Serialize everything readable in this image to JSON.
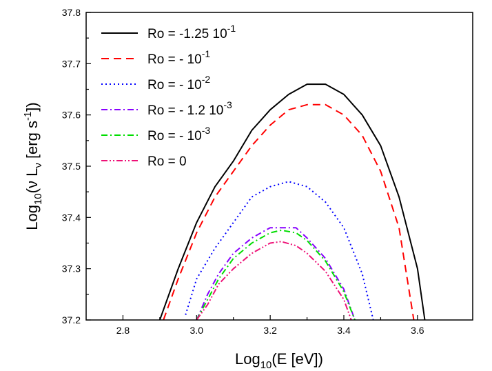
{
  "chart_data": {
    "type": "line",
    "xlabel": {
      "base": "Log",
      "sub": "10",
      "rest": "(E [eV])"
    },
    "ylabel": {
      "base": "Log",
      "sub": "10",
      "mid": "(ν L",
      "sub2": "ν",
      "mid2": " [erg s",
      "sup": "-1",
      "end": "])"
    },
    "xlim": [
      2.7,
      3.75
    ],
    "ylim": [
      37.2,
      37.8
    ],
    "xticks": [
      2.8,
      3.0,
      3.2,
      3.4,
      3.6
    ],
    "xtick_labels": [
      "2.8",
      "3.0",
      "3.2",
      "3.4",
      "3.6"
    ],
    "yticks": [
      37.2,
      37.3,
      37.4,
      37.5,
      37.6,
      37.7,
      37.8
    ],
    "ytick_labels": [
      "37.2",
      "37.3",
      "37.4",
      "37.5",
      "37.6",
      "37.7",
      "37.8"
    ],
    "legend_position": "top-left",
    "series": [
      {
        "name": "Ro = -1.25 10",
        "name_sup": "-1",
        "color": "#000000",
        "dash": "solid",
        "x": [
          2.9,
          2.95,
          3.0,
          3.05,
          3.1,
          3.15,
          3.2,
          3.25,
          3.3,
          3.35,
          3.4,
          3.45,
          3.5,
          3.55,
          3.6,
          3.62
        ],
        "y": [
          37.2,
          37.3,
          37.39,
          37.46,
          37.51,
          37.57,
          37.61,
          37.64,
          37.66,
          37.66,
          37.64,
          37.6,
          37.54,
          37.44,
          37.3,
          37.2
        ]
      },
      {
        "name": "Ro = - 10",
        "name_sup": "-1",
        "color": "#ff0000",
        "dash": "dashed",
        "x": [
          2.91,
          2.95,
          3.0,
          3.05,
          3.1,
          3.15,
          3.2,
          3.25,
          3.3,
          3.35,
          3.4,
          3.45,
          3.5,
          3.55,
          3.59
        ],
        "y": [
          37.2,
          37.28,
          37.37,
          37.44,
          37.49,
          37.54,
          37.58,
          37.61,
          37.62,
          37.62,
          37.6,
          37.56,
          37.49,
          37.38,
          37.2
        ]
      },
      {
        "name": "Ro = - 10",
        "name_sup": "-2",
        "color": "#0000ff",
        "dash": "dotted",
        "x": [
          2.97,
          3.0,
          3.05,
          3.1,
          3.15,
          3.2,
          3.25,
          3.3,
          3.35,
          3.4,
          3.45,
          3.48
        ],
        "y": [
          37.21,
          37.28,
          37.34,
          37.39,
          37.44,
          37.46,
          37.47,
          37.46,
          37.43,
          37.38,
          37.29,
          37.2
        ]
      },
      {
        "name": "Ro = - 1.2 10",
        "name_sup": "-3",
        "color": "#8800ff",
        "dash": "dashdot",
        "x": [
          3.0,
          3.03,
          3.06,
          3.1,
          3.15,
          3.2,
          3.23,
          3.27,
          3.3,
          3.35,
          3.4,
          3.43
        ],
        "y": [
          37.2,
          37.25,
          37.29,
          37.33,
          37.36,
          37.38,
          37.38,
          37.38,
          37.36,
          37.32,
          37.26,
          37.2
        ]
      },
      {
        "name": "Ro = - 10",
        "name_sup": "-3",
        "color": "#00dd00",
        "dash": "dashdot",
        "x": [
          3.0,
          3.03,
          3.06,
          3.1,
          3.15,
          3.2,
          3.23,
          3.27,
          3.3,
          3.35,
          3.4,
          3.43
        ],
        "y": [
          37.2,
          37.24,
          37.28,
          37.32,
          37.35,
          37.37,
          37.375,
          37.37,
          37.355,
          37.315,
          37.255,
          37.2
        ]
      },
      {
        "name": "Ro = 0",
        "name_sup": "",
        "color": "#ee1177",
        "dash": "dashdotdot",
        "x": [
          3.0,
          3.03,
          3.06,
          3.1,
          3.15,
          3.2,
          3.23,
          3.27,
          3.3,
          3.35,
          3.4,
          3.42
        ],
        "y": [
          37.2,
          37.23,
          37.27,
          37.3,
          37.33,
          37.35,
          37.353,
          37.345,
          37.33,
          37.295,
          37.24,
          37.2
        ]
      }
    ]
  }
}
